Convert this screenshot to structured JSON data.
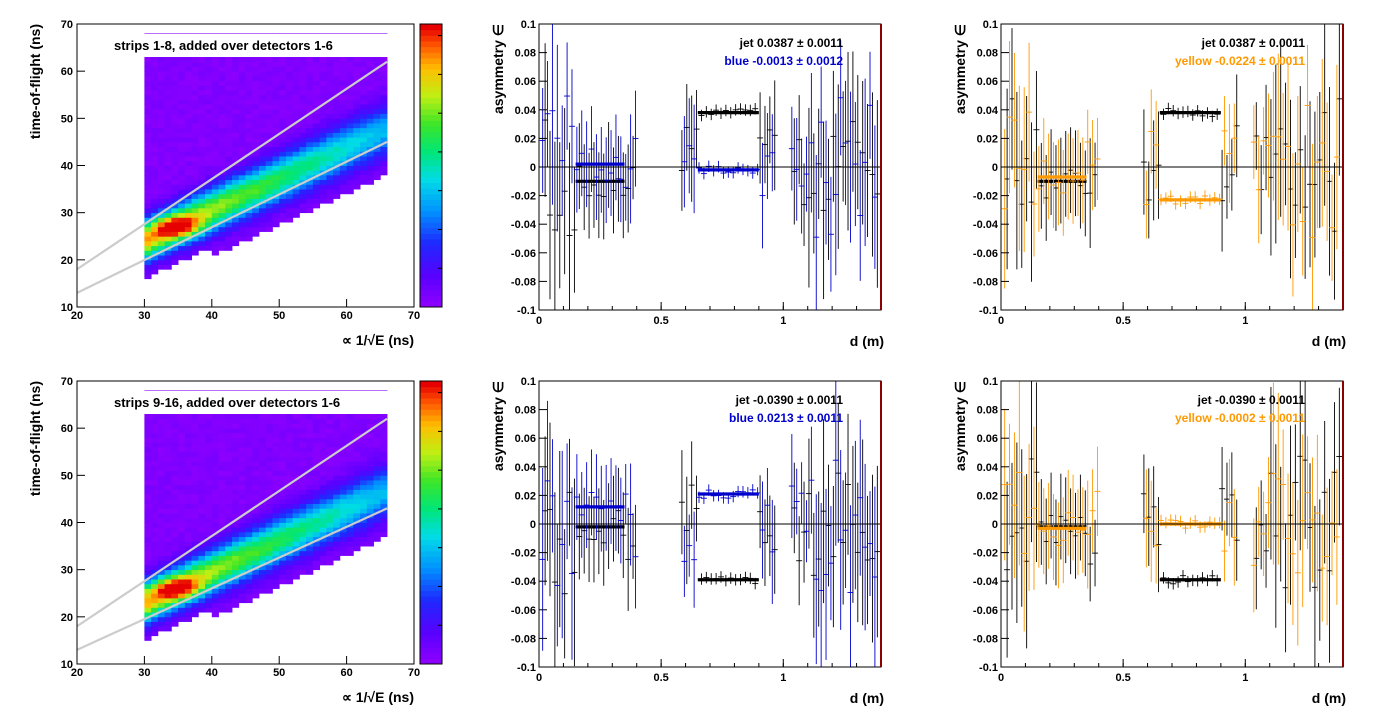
{
  "chart_data": [
    {
      "type": "heatmap",
      "panel": "top-left",
      "annotation": "strips 1-8, added over detectors 1-6",
      "xlabel": "∝ 1/√E (ns)",
      "ylabel": "time-of-flight (ns)",
      "xlim": [
        20,
        70
      ],
      "ylim": [
        10,
        70
      ],
      "xticks": [
        "20",
        "30",
        "40",
        "50",
        "60",
        "70"
      ],
      "yticks": [
        "10",
        "20",
        "30",
        "40",
        "50",
        "60",
        "70"
      ],
      "peak": {
        "x": 35,
        "y": 27
      },
      "band": {
        "x": [
          30,
          65
        ],
        "center_y": [
          24,
          47
        ],
        "half_width": [
          4,
          5
        ]
      },
      "cut_lines": [
        {
          "x": [
            20,
            66
          ],
          "y": [
            18,
            62
          ]
        },
        {
          "x": [
            20,
            66
          ],
          "y": [
            13,
            45
          ]
        }
      ]
    },
    {
      "type": "scatter",
      "panel": "top-middle",
      "xlabel": "d (m)",
      "ylabel": "asymmetry ∈",
      "xlim": [
        0,
        1.4
      ],
      "ylim": [
        -0.1,
        0.1
      ],
      "xticks": [
        "0",
        "0.5",
        "1"
      ],
      "yticks": [
        "-0.1",
        "-0.08",
        "-0.06",
        "-0.04",
        "-0.02",
        "0",
        "0.02",
        "0.04",
        "0.06",
        "0.08",
        "0.1"
      ],
      "legend": [
        {
          "label": "jet  0.0387 ± 0.0011",
          "color": "#000000"
        },
        {
          "label": "blue  -0.0013 ± 0.0012",
          "color": "#0000cc"
        }
      ],
      "series": [
        {
          "name": "jet",
          "color": "#000000",
          "fits": [
            {
              "x": [
                0.15,
                0.35
              ],
              "y": -0.01
            },
            {
              "x": [
                0.65,
                0.9
              ],
              "y": 0.038
            }
          ]
        },
        {
          "name": "blue",
          "color": "#0000cc",
          "fits": [
            {
              "x": [
                0.15,
                0.35
              ],
              "y": 0.002
            },
            {
              "x": [
                0.65,
                0.9
              ],
              "y": -0.002
            }
          ]
        }
      ]
    },
    {
      "type": "scatter",
      "panel": "top-right",
      "xlabel": "d (m)",
      "ylabel": "asymmetry ∈",
      "xlim": [
        0,
        1.4
      ],
      "ylim": [
        -0.1,
        0.1
      ],
      "xticks": [
        "0",
        "0.5",
        "1"
      ],
      "yticks": [
        "-0.1",
        "-0.08",
        "-0.06",
        "-0.04",
        "-0.02",
        "0",
        "0.02",
        "0.04",
        "0.06",
        "0.08",
        "0.1"
      ],
      "legend": [
        {
          "label": "jet  0.0387 ± 0.0011",
          "color": "#000000"
        },
        {
          "label": "yellow  -0.0224 ± 0.0011",
          "color": "#ff9900"
        }
      ],
      "series": [
        {
          "name": "jet",
          "color": "#000000",
          "fits": [
            {
              "x": [
                0.15,
                0.35
              ],
              "y": -0.01
            },
            {
              "x": [
                0.65,
                0.9
              ],
              "y": 0.038
            }
          ]
        },
        {
          "name": "yellow",
          "color": "#ff9900",
          "fits": [
            {
              "x": [
                0.15,
                0.35
              ],
              "y": -0.007
            },
            {
              "x": [
                0.65,
                0.9
              ],
              "y": -0.023
            }
          ]
        }
      ]
    },
    {
      "type": "heatmap",
      "panel": "bottom-left",
      "annotation": "strips 9-16, added over detectors 1-6",
      "xlabel": "∝ 1/√E (ns)",
      "ylabel": "time-of-flight (ns)",
      "xlim": [
        20,
        70
      ],
      "ylim": [
        10,
        70
      ],
      "xticks": [
        "20",
        "30",
        "40",
        "50",
        "60",
        "70"
      ],
      "yticks": [
        "10",
        "20",
        "30",
        "40",
        "50",
        "60",
        "70"
      ],
      "peak": {
        "x": 35,
        "y": 26
      },
      "band": {
        "x": [
          30,
          65
        ],
        "center_y": [
          23,
          46
        ],
        "half_width": [
          4,
          5
        ]
      },
      "cut_lines": [
        {
          "x": [
            20,
            66
          ],
          "y": [
            18,
            62
          ]
        },
        {
          "x": [
            20,
            66
          ],
          "y": [
            13,
            43
          ]
        }
      ]
    },
    {
      "type": "scatter",
      "panel": "bottom-middle",
      "xlabel": "d (m)",
      "ylabel": "asymmetry ∈",
      "xlim": [
        0,
        1.4
      ],
      "ylim": [
        -0.1,
        0.1
      ],
      "xticks": [
        "0",
        "0.5",
        "1"
      ],
      "yticks": [
        "-0.1",
        "-0.08",
        "-0.06",
        "-0.04",
        "-0.02",
        "0",
        "0.02",
        "0.04",
        "0.06",
        "0.08",
        "0.1"
      ],
      "legend": [
        {
          "label": "jet  -0.0390 ± 0.0011",
          "color": "#000000"
        },
        {
          "label": "blue  0.0213 ± 0.0011",
          "color": "#0000cc"
        }
      ],
      "series": [
        {
          "name": "jet",
          "color": "#000000",
          "fits": [
            {
              "x": [
                0.15,
                0.35
              ],
              "y": -0.002
            },
            {
              "x": [
                0.65,
                0.9
              ],
              "y": -0.039
            }
          ]
        },
        {
          "name": "blue",
          "color": "#0000cc",
          "fits": [
            {
              "x": [
                0.15,
                0.35
              ],
              "y": 0.012
            },
            {
              "x": [
                0.65,
                0.9
              ],
              "y": 0.021
            }
          ]
        }
      ]
    },
    {
      "type": "scatter",
      "panel": "bottom-right",
      "xlabel": "d (m)",
      "ylabel": "asymmetry ∈",
      "xlim": [
        0,
        1.4
      ],
      "ylim": [
        -0.1,
        0.1
      ],
      "xticks": [
        "0",
        "0.5",
        "1"
      ],
      "yticks": [
        "-0.1",
        "-0.08",
        "-0.06",
        "-0.04",
        "-0.02",
        "0",
        "0.02",
        "0.04",
        "0.06",
        "0.08",
        "0.1"
      ],
      "legend": [
        {
          "label": "jet  -0.0390 ± 0.0011",
          "color": "#000000"
        },
        {
          "label": "yellow  -0.0002 ± 0.0011",
          "color": "#ff9900"
        }
      ],
      "series": [
        {
          "name": "jet",
          "color": "#000000",
          "fits": [
            {
              "x": [
                0.15,
                0.35
              ],
              "y": -0.002
            },
            {
              "x": [
                0.65,
                0.9
              ],
              "y": -0.039
            }
          ]
        },
        {
          "name": "yellow",
          "color": "#ff9900",
          "fits": [
            {
              "x": [
                0.15,
                0.35
              ],
              "y": -0.003
            },
            {
              "x": [
                0.65,
                0.9
              ],
              "y": 0.0
            }
          ]
        }
      ]
    }
  ]
}
